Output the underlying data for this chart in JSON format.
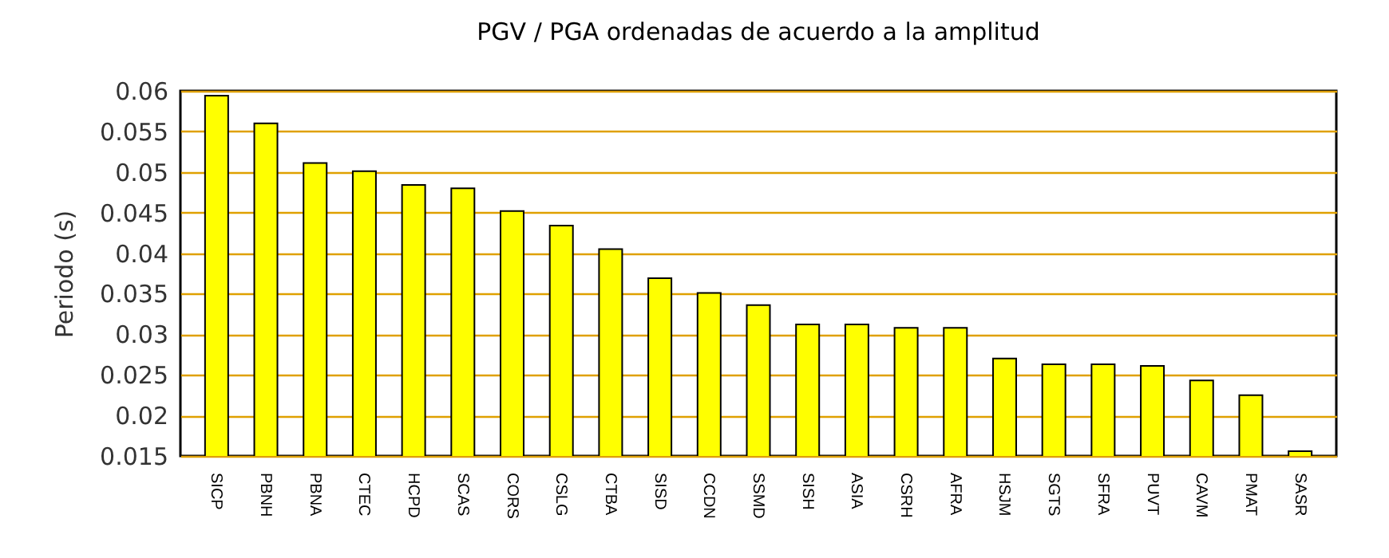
{
  "chart_data": {
    "type": "bar",
    "title": "PGV / PGA ordenadas de acuerdo a la amplitud",
    "ylabel": "Periodo (s)",
    "categories": [
      "SICP",
      "PBNH",
      "PBNA",
      "CTEC",
      "HCPD",
      "SCAS",
      "CORS",
      "CSLG",
      "CTBA",
      "SISD",
      "CCDN",
      "SSMD",
      "SISH",
      "ASIA",
      "CSRH",
      "AFRA",
      "HSJM",
      "SGTS",
      "SFRA",
      "PUVT",
      "CAVM",
      "PMAT",
      "SASR"
    ],
    "values": [
      0.0594,
      0.056,
      0.0511,
      0.0501,
      0.0484,
      0.048,
      0.0452,
      0.0434,
      0.0405,
      0.0369,
      0.0351,
      0.0336,
      0.0312,
      0.0312,
      0.0308,
      0.0308,
      0.027,
      0.0263,
      0.0263,
      0.0261,
      0.0243,
      0.0225,
      0.0156
    ],
    "color": "#ffff00",
    "ylim": [
      0.015,
      0.06
    ],
    "yticks": [
      0.015,
      0.02,
      0.025,
      0.03,
      0.035,
      0.04,
      0.045,
      0.05,
      0.055,
      0.06
    ],
    "grid": "y"
  }
}
